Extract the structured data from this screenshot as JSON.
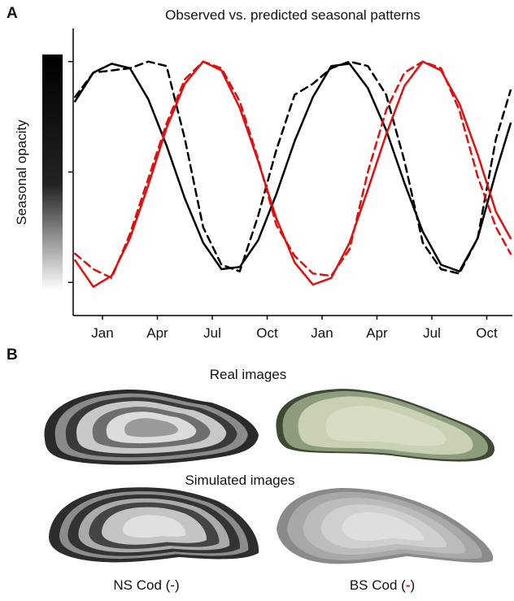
{
  "chart_data": {
    "type": "line",
    "panel_label": "A",
    "title": "Observed vs. predicted seasonal patterns",
    "y_label": "Seasonal opacity",
    "x": [
      -1.5,
      -0.5,
      0.5,
      1.5,
      2.5,
      3.5,
      4.5,
      5.5,
      6.5,
      7.5,
      8.5,
      9.5,
      10.5,
      11.5,
      12.5,
      13.5,
      14.5,
      15.5,
      16.5,
      17.5,
      18.5,
      19.5,
      20.5,
      21.5,
      22.3
    ],
    "xlim": [
      -1.6,
      22.4
    ],
    "xticks": [
      {
        "value": 0,
        "label": "Jan"
      },
      {
        "value": 3,
        "label": "Apr"
      },
      {
        "value": 6,
        "label": "Jul"
      },
      {
        "value": 9,
        "label": "Oct"
      },
      {
        "value": 12,
        "label": "Jan"
      },
      {
        "value": 15,
        "label": "Apr"
      },
      {
        "value": 18,
        "label": "Jul"
      },
      {
        "value": 21,
        "label": "Oct"
      }
    ],
    "ylim": [
      -0.15,
      1.15
    ],
    "yticks": [
      0,
      0.5,
      1
    ],
    "series": [
      {
        "color": "#000000",
        "dash": false,
        "values": [
          0.82,
          0.95,
          0.99,
          0.97,
          0.83,
          0.62,
          0.38,
          0.18,
          0.06,
          0.07,
          0.19,
          0.4,
          0.64,
          0.84,
          0.98,
          0.99,
          0.88,
          0.69,
          0.45,
          0.23,
          0.08,
          0.05,
          0.2,
          0.5,
          0.72
        ]
      },
      {
        "color": "#000000",
        "dash": true,
        "values": [
          0.84,
          0.95,
          0.96,
          0.97,
          1.0,
          0.98,
          0.65,
          0.25,
          0.08,
          0.05,
          0.3,
          0.6,
          0.85,
          0.9,
          0.97,
          1.0,
          0.98,
          0.85,
          0.55,
          0.18,
          0.06,
          0.04,
          0.2,
          0.65,
          0.87
        ]
      },
      {
        "color": "#e01010",
        "dash": false,
        "values": [
          0.1,
          -0.02,
          0.03,
          0.2,
          0.44,
          0.7,
          0.9,
          1.0,
          0.96,
          0.79,
          0.55,
          0.29,
          0.09,
          -0.01,
          0.02,
          0.18,
          0.42,
          0.67,
          0.89,
          1.0,
          0.96,
          0.81,
          0.58,
          0.32,
          0.2
        ]
      },
      {
        "color": "#e01010",
        "dash": true,
        "values": [
          0.13,
          0.06,
          0.02,
          0.22,
          0.47,
          0.72,
          0.92,
          1.0,
          0.97,
          0.82,
          0.56,
          0.26,
          0.12,
          0.04,
          0.03,
          0.15,
          0.5,
          0.78,
          0.95,
          1.0,
          0.97,
          0.78,
          0.48,
          0.25,
          0.13
        ]
      }
    ]
  },
  "panel_b": {
    "panel_label": "B",
    "real_title": "Real images",
    "simulated_title": "Simulated images",
    "ns_label": "NS Cod (-)",
    "bs_label": [
      "BS Cod (",
      "-",
      ")"
    ]
  }
}
